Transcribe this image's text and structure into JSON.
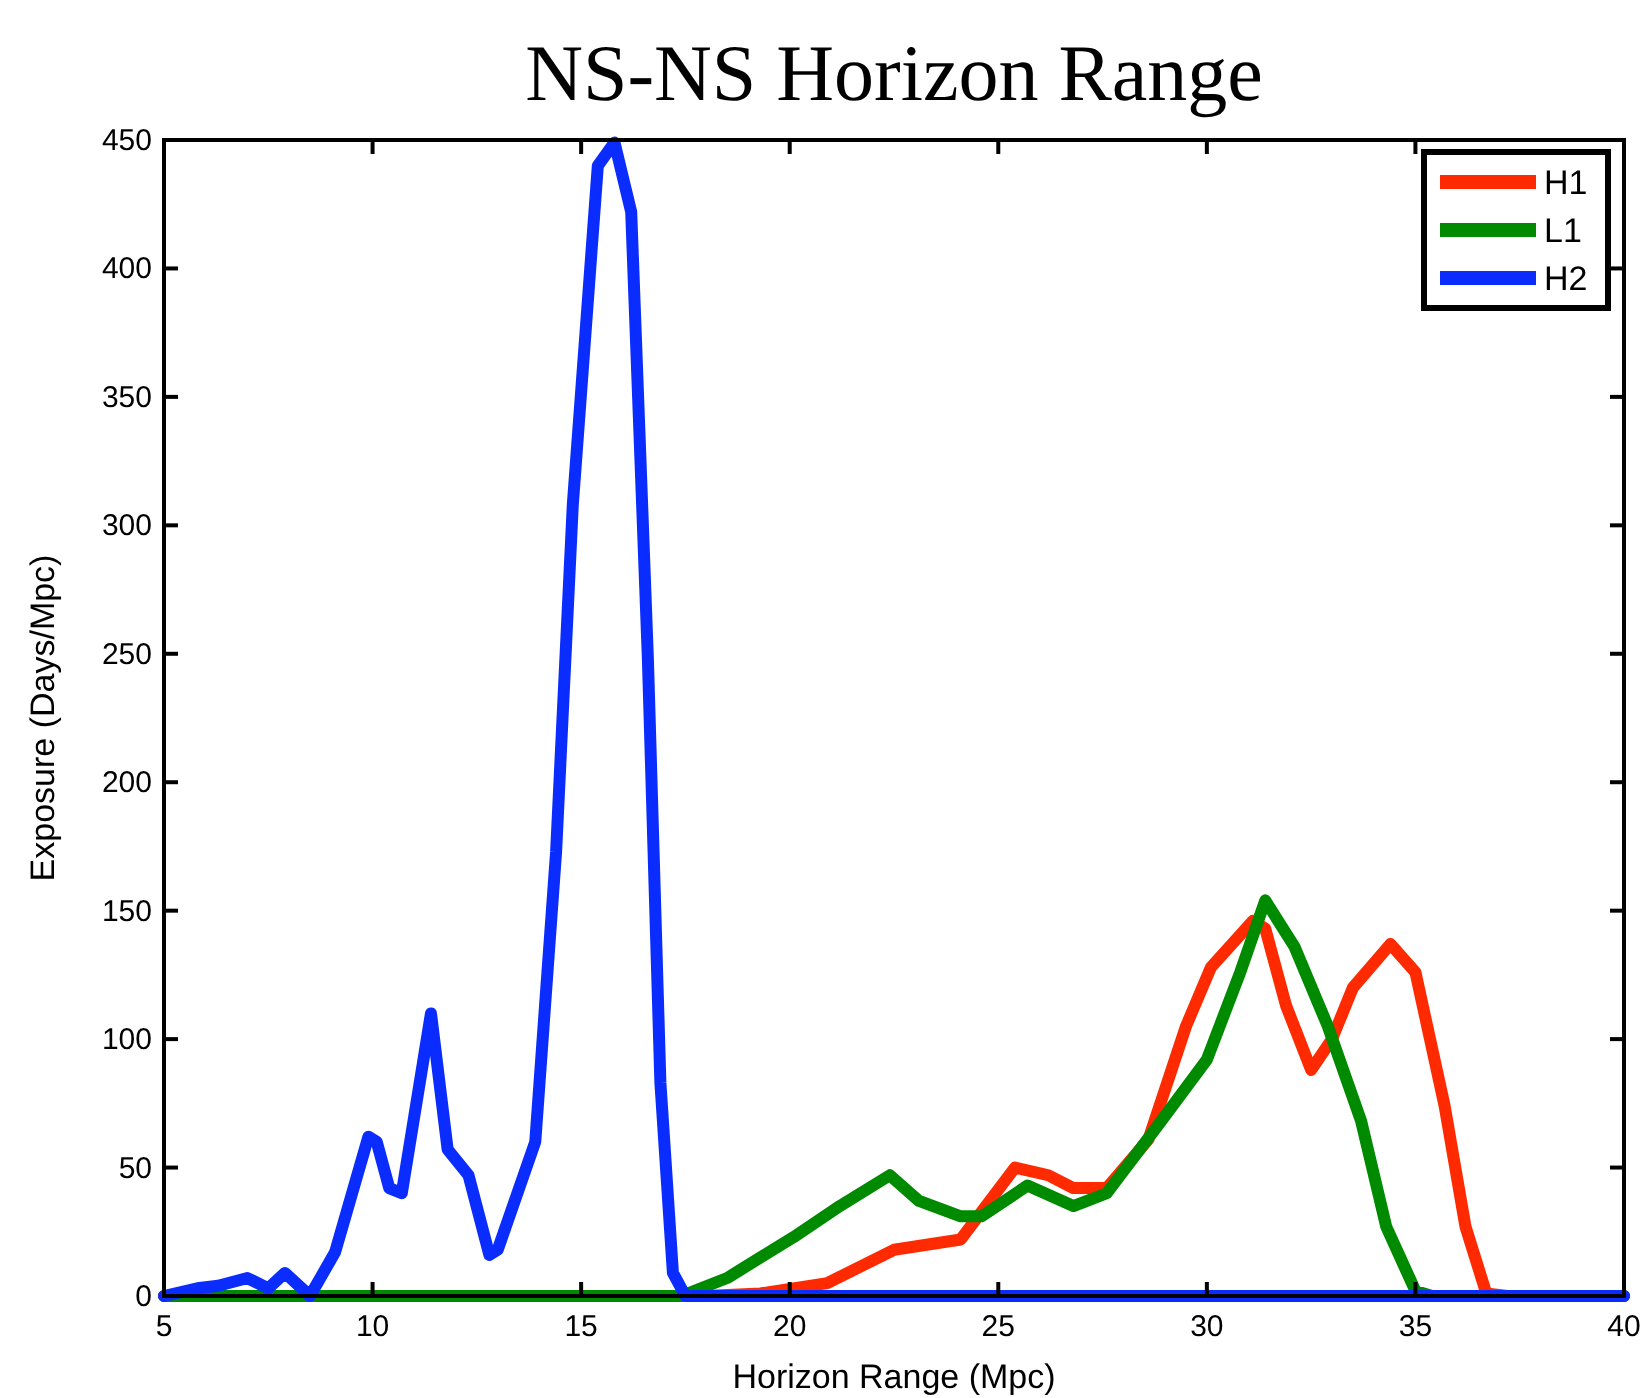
{
  "chart_data": {
    "type": "line",
    "title": "NS-NS Horizon Range",
    "xlabel": "Horizon Range (Mpc)",
    "ylabel": "Exposure (Days/Mpc)",
    "xlim": [
      5,
      40
    ],
    "ylim": [
      0,
      450
    ],
    "xticks": [
      5,
      10,
      15,
      20,
      25,
      30,
      35,
      40
    ],
    "yticks": [
      0,
      50,
      100,
      150,
      200,
      250,
      300,
      350,
      400,
      450
    ],
    "grid": false,
    "legend": "top right",
    "marker": "none",
    "line_style": "solid",
    "series": [
      {
        "name": "H1",
        "color": "#ff2a00",
        "x": [
          5,
          18,
          19.3,
          20.9,
          22.5,
          24.1,
          25.4,
          26.2,
          26.8,
          27.6,
          28.6,
          29.5,
          30.1,
          31.1,
          31.4,
          31.9,
          32.5,
          33,
          33.5,
          34.4,
          35,
          35.7,
          36.2,
          36.7,
          37.2,
          40
        ],
        "values": [
          0,
          0,
          1,
          5,
          18,
          22,
          50,
          47,
          42,
          42,
          61,
          105,
          128,
          146,
          143,
          113,
          88,
          100,
          120,
          137,
          126,
          74,
          27,
          1,
          0,
          0
        ]
      },
      {
        "name": "L1",
        "color": "#008a00",
        "x": [
          5,
          17.4,
          18.5,
          19.3,
          20.1,
          21.2,
          22.4,
          23.1,
          24.1,
          24.6,
          25.7,
          26.8,
          27.6,
          28.9,
          30,
          30.8,
          31.4,
          32.1,
          32.9,
          33.7,
          34.3,
          35,
          35.4,
          40
        ],
        "values": [
          0,
          0,
          7,
          15,
          23,
          35,
          47,
          37,
          31,
          31,
          43,
          35,
          40,
          68,
          92,
          126,
          154,
          136,
          105,
          68,
          27,
          2,
          0,
          0
        ]
      },
      {
        "name": "H2",
        "color": "#0a2cff",
        "x": [
          5,
          5.8,
          6.3,
          7,
          7.5,
          7.9,
          8.5,
          9.1,
          9.9,
          10.1,
          10.4,
          10.7,
          11.4,
          11.8,
          12.3,
          12.8,
          13,
          13.9,
          14.4,
          14.8,
          15.4,
          15.8,
          16.2,
          16.6,
          16.9,
          17.2,
          17.5,
          40
        ],
        "values": [
          0,
          3,
          4,
          7,
          3,
          9,
          0,
          17,
          62,
          60,
          42,
          40,
          110,
          57,
          47,
          16,
          18,
          60,
          173,
          308,
          440,
          449,
          422,
          248,
          83,
          9,
          0,
          0
        ]
      }
    ]
  }
}
